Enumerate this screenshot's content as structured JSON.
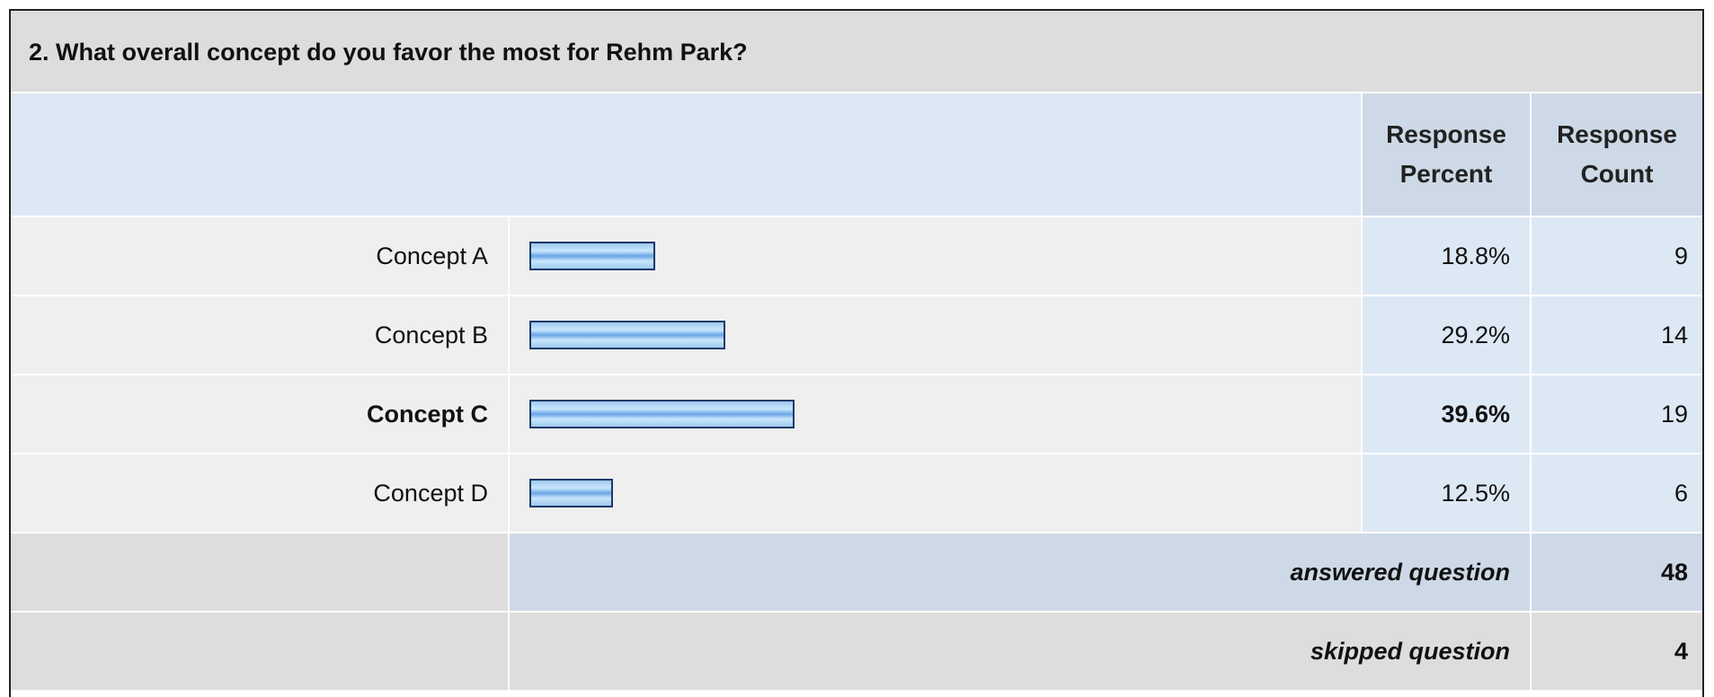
{
  "question_title": "2. What overall concept do you favor the most for Rehm Park?",
  "headers": {
    "response_percent_line1": "Response",
    "response_percent_line2": "Percent",
    "response_count_line1": "Response",
    "response_count_line2": "Count"
  },
  "chart_data": {
    "type": "bar",
    "orientation": "horizontal",
    "categories": [
      "Concept A",
      "Concept B",
      "Concept C",
      "Concept D"
    ],
    "percent_labels": [
      "18.8%",
      "29.2%",
      "39.6%",
      "12.5%"
    ],
    "values": [
      18.8,
      29.2,
      39.6,
      12.5
    ],
    "counts": [
      "9",
      "14",
      "19",
      "6"
    ],
    "highlighted_category": "Concept C"
  },
  "summary": {
    "answered_label": "answered question",
    "answered_value": "48",
    "skipped_label": "skipped question",
    "skipped_value": "4"
  },
  "colors": {
    "bar_border": "#1c3a66",
    "bar_fill": "#9ec8ee",
    "header_bg": "#cdd9e6",
    "light_blue_bg": "#dde8f5",
    "row_bg": "#efefef",
    "title_bg": "#dddddd"
  }
}
